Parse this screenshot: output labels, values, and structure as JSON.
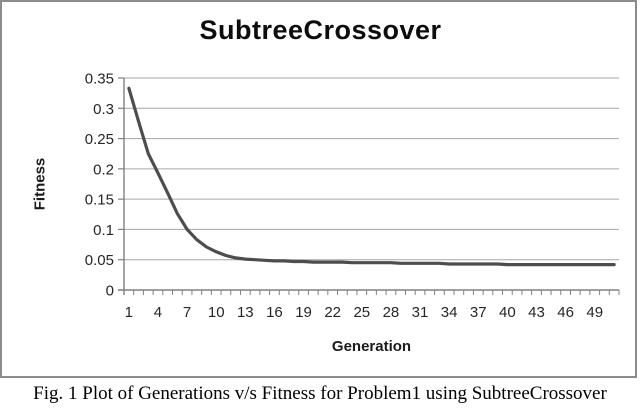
{
  "figure": {
    "title": "SubtreeCrossover",
    "caption": "Fig. 1 Plot of Generations v/s Fitness for Problem1 using SubtreeCrossover"
  },
  "chart_data": {
    "type": "line",
    "title": "SubtreeCrossover",
    "xlabel": "Generation",
    "ylabel": "Fitness",
    "x": [
      1,
      2,
      3,
      4,
      5,
      6,
      7,
      8,
      9,
      10,
      11,
      12,
      13,
      14,
      15,
      16,
      17,
      18,
      19,
      20,
      21,
      22,
      23,
      24,
      25,
      26,
      27,
      28,
      29,
      30,
      31,
      32,
      33,
      34,
      35,
      36,
      37,
      38,
      39,
      40,
      41,
      42,
      43,
      44,
      45,
      46,
      47,
      48,
      49,
      50,
      51
    ],
    "values": [
      0.333,
      0.278,
      0.225,
      0.193,
      0.16,
      0.126,
      0.1,
      0.083,
      0.071,
      0.063,
      0.057,
      0.053,
      0.051,
      0.05,
      0.049,
      0.048,
      0.048,
      0.047,
      0.047,
      0.046,
      0.046,
      0.046,
      0.046,
      0.045,
      0.045,
      0.045,
      0.045,
      0.045,
      0.044,
      0.044,
      0.044,
      0.044,
      0.044,
      0.043,
      0.043,
      0.043,
      0.043,
      0.043,
      0.043,
      0.042,
      0.042,
      0.042,
      0.042,
      0.042,
      0.042,
      0.042,
      0.042,
      0.042,
      0.042,
      0.042,
      0.042
    ],
    "ylim": [
      0,
      0.35
    ],
    "y_ticks": [
      0,
      0.05,
      0.1,
      0.15,
      0.2,
      0.25,
      0.3,
      0.35
    ],
    "y_tick_labels": [
      "0",
      "0.05",
      "0.1",
      "0.15",
      "0.2",
      "0.25",
      "0.3",
      "0.35"
    ],
    "x_tick_labels": [
      1,
      4,
      7,
      10,
      13,
      16,
      19,
      22,
      25,
      28,
      31,
      34,
      37,
      40,
      43,
      46,
      49
    ],
    "grid": true,
    "legend": "none",
    "line_color": "#4d4d4d",
    "grid_color": "#a6a6a6",
    "axis_color": "#808080",
    "tick_label_color": "#262626"
  }
}
